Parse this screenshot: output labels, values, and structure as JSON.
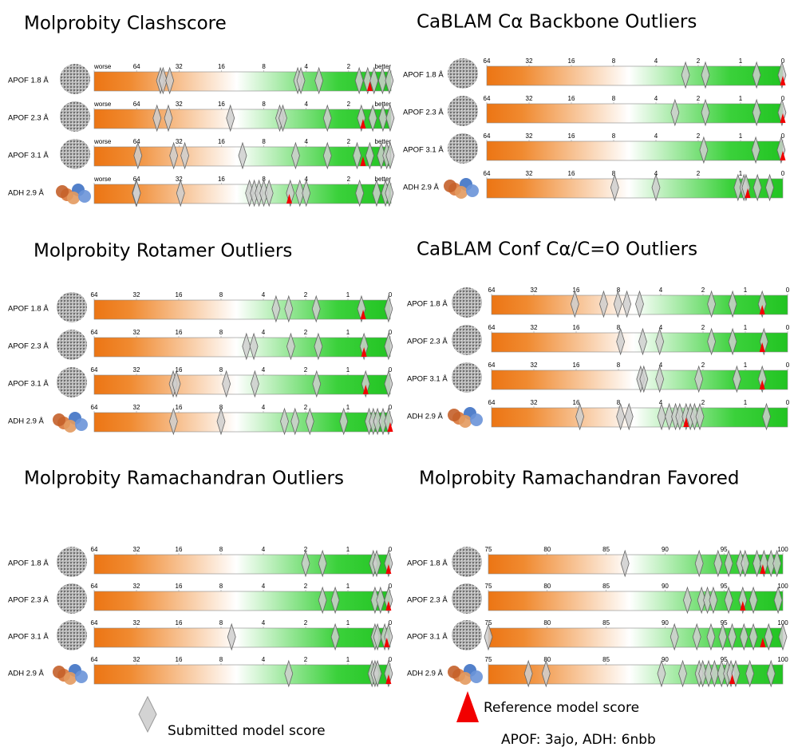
{
  "chart_data": [
    {
      "type": "slider-strip",
      "title": "Molprobity Clashscore",
      "scale": "tick-spaced",
      "xlim": [
        128,
        1
      ],
      "xticks": [
        {
          "value": 128,
          "label": "worse"
        },
        64,
        32,
        16,
        8,
        4,
        2,
        {
          "value": 1,
          "label": "better"
        }
      ],
      "rows": [
        {
          "label": "APOF 1.8 Å",
          "submitted": [
            46,
            44,
            39,
            4.8,
            4.5,
            3.4,
            1.75,
            1.55,
            1.4,
            1.2,
            1.04
          ],
          "reference": [
            1.5
          ]
        },
        {
          "label": "APOF 2.3 Å",
          "submitted": [
            48.6,
            40,
            14.3,
            6.5,
            6.2,
            3.0,
            1.7,
            1.43,
            1.19,
            1.02
          ],
          "reference": [
            1.66
          ]
        },
        {
          "label": "APOF 3.1 Å",
          "submitted": [
            63,
            36,
            29.8,
            12,
            5,
            3,
            1.8,
            1.5,
            1.23,
            1.1,
            1.02
          ],
          "reference": [
            1.66
          ]
        },
        {
          "label": "ADH 2.9 Å",
          "submitted": [
            64.6,
            64,
            31.4,
            10.7,
            9.8,
            8.9,
            8,
            7.5,
            5.5,
            4.6,
            4,
            1.74,
            1.34,
            1.13,
            1.04
          ],
          "reference": [
            5.6
          ]
        }
      ]
    },
    {
      "type": "slider-strip",
      "title": "CaBLAM Cα Backbone Outliers",
      "scale": "tick-spaced",
      "xlim": [
        64,
        0
      ],
      "xticks": [
        64,
        32,
        16,
        8,
        4,
        2,
        1,
        0
      ],
      "rows": [
        {
          "label": "APOF 1.8 Å",
          "submitted": [
            2.6,
            1.83,
            0.62,
            0.02
          ],
          "reference": [
            0
          ]
        },
        {
          "label": "APOF 2.3 Å",
          "submitted": [
            3.1,
            1.83,
            0.62,
            0.02
          ],
          "reference": [
            0
          ]
        },
        {
          "label": "APOF 3.1 Å",
          "submitted": [
            1.87,
            0.64,
            0.04
          ],
          "reference": [
            0
          ]
        },
        {
          "label": "ADH 2.9 Å",
          "submitted": [
            7.9,
            4.0,
            1.06,
            0.92,
            0.87,
            0.6,
            0.31
          ],
          "reference": [
            0.83
          ]
        }
      ]
    },
    {
      "type": "slider-strip",
      "title": "Molprobity Rotamer Outliers",
      "scale": "tick-spaced",
      "xlim": [
        64,
        0
      ],
      "xticks": [
        64,
        32,
        16,
        8,
        4,
        2,
        1,
        0
      ],
      "rows": [
        {
          "label": "APOF 1.8 Å",
          "submitted": [
            3.4,
            2.8,
            1.75,
            0.68,
            0.04
          ],
          "reference": [
            0.64
          ]
        },
        {
          "label": "APOF 2.3 Å",
          "submitted": [
            5.6,
            4.9,
            2.7,
            1.7,
            0.62,
            0.04
          ],
          "reference": [
            0.62
          ]
        },
        {
          "label": "APOF 3.1 Å",
          "submitted": [
            18.1,
            16.9,
            7.5,
            4.8,
            1.74,
            0.58,
            0.04
          ],
          "reference": [
            0.58
          ]
        },
        {
          "label": "ADH 2.9 Å",
          "submitted": [
            18,
            8,
            3.0,
            2.5,
            1.9,
            1.1,
            0.5,
            0.4,
            0.3,
            0.17,
            0.04
          ],
          "reference": [
            0
          ]
        }
      ]
    },
    {
      "type": "slider-strip",
      "title": "CaBLAM Conf Cα/C=O Outliers",
      "scale": "tick-spaced",
      "xlim": [
        64,
        0
      ],
      "xticks": [
        64,
        32,
        16,
        8,
        4,
        2,
        1,
        0
      ],
      "rows": [
        {
          "label": "APOF 1.8 Å",
          "submitted": [
            16.5,
            10.8,
            8.1,
            7.2,
            6.0,
            1.8,
            1.3,
            0.6
          ],
          "reference": [
            0.6
          ]
        },
        {
          "label": "APOF 2.3 Å",
          "submitted": [
            7.8,
            5.7,
            4.1,
            1.8,
            1.3,
            0.56
          ],
          "reference": [
            0.6
          ]
        },
        {
          "label": "APOF 3.1 Å",
          "submitted": [
            5.9,
            5.6,
            4.1,
            2.2,
            1.2,
            0.6
          ],
          "reference": [
            0.6
          ]
        },
        {
          "label": "ADH 2.9 Å",
          "submitted": [
            15.3,
            7.8,
            7.0,
            3.96,
            3.6,
            3.3,
            3.1,
            2.8,
            2.6,
            2.4,
            2.15,
            0.5
          ],
          "reference": [
            2.8
          ]
        }
      ]
    },
    {
      "type": "slider-strip",
      "title": "Molprobity Ramachandran Outliers",
      "scale": "tick-spaced",
      "xlim": [
        64,
        0
      ],
      "xticks": [
        64,
        32,
        16,
        8,
        4,
        2,
        1,
        0
      ],
      "rows": [
        {
          "label": "APOF 1.8 Å",
          "submitted": [
            2,
            1.6,
            0.4,
            0.32,
            0.04
          ],
          "reference": [
            0.04
          ]
        },
        {
          "label": "APOF 2.3 Å",
          "submitted": [
            1.6,
            1.3,
            0.36,
            0.23,
            0.04
          ],
          "reference": [
            0.04
          ]
        },
        {
          "label": "APOF 3.1 Å",
          "submitted": [
            7.0,
            1.3,
            0.36,
            0.3,
            0.13,
            0.04
          ],
          "reference": [
            0.08
          ]
        },
        {
          "label": "ADH 2.9 Å",
          "submitted": [
            2.8,
            0.43,
            0.36,
            0.3,
            0.04
          ],
          "reference": [
            0.04
          ]
        }
      ]
    },
    {
      "type": "slider-strip",
      "title": "Molprobity Ramachandran Favored",
      "scale": "tick-spaced",
      "xlim": [
        75,
        100
      ],
      "xticks": [
        75,
        80,
        85,
        90,
        95,
        100
      ],
      "rows": [
        {
          "label": "APOF 1.8 Å",
          "submitted": [
            86.6,
            92.9,
            94.5,
            95.4,
            96.4,
            96.8,
            97.8,
            98.4,
            99,
            99.5
          ],
          "reference": [
            98.3
          ]
        },
        {
          "label": "APOF 2.3 Å",
          "submitted": [
            91.9,
            93.1,
            93.6,
            94.1,
            95.4,
            96.6,
            97.5,
            99.6
          ],
          "reference": [
            96.6
          ]
        },
        {
          "label": "APOF 3.1 Å",
          "submitted": [
            75,
            90.8,
            92.7,
            93.9,
            94.9,
            95.7,
            96.7,
            97.5,
            98.8,
            100
          ],
          "reference": [
            98.3
          ]
        },
        {
          "label": "ADH 2.9 Å",
          "submitted": [
            78.4,
            79.9,
            89.7,
            91.5,
            92.9,
            93.2,
            93.7,
            94.2,
            94.8,
            95.3,
            95.6,
            96,
            97.2,
            99
          ],
          "reference": [
            95.7
          ]
        }
      ]
    }
  ],
  "legend": {
    "submitted": "Submitted model score",
    "reference": "Reference model score",
    "note": "APOF: 3ajo, ADH: 6nbb"
  }
}
